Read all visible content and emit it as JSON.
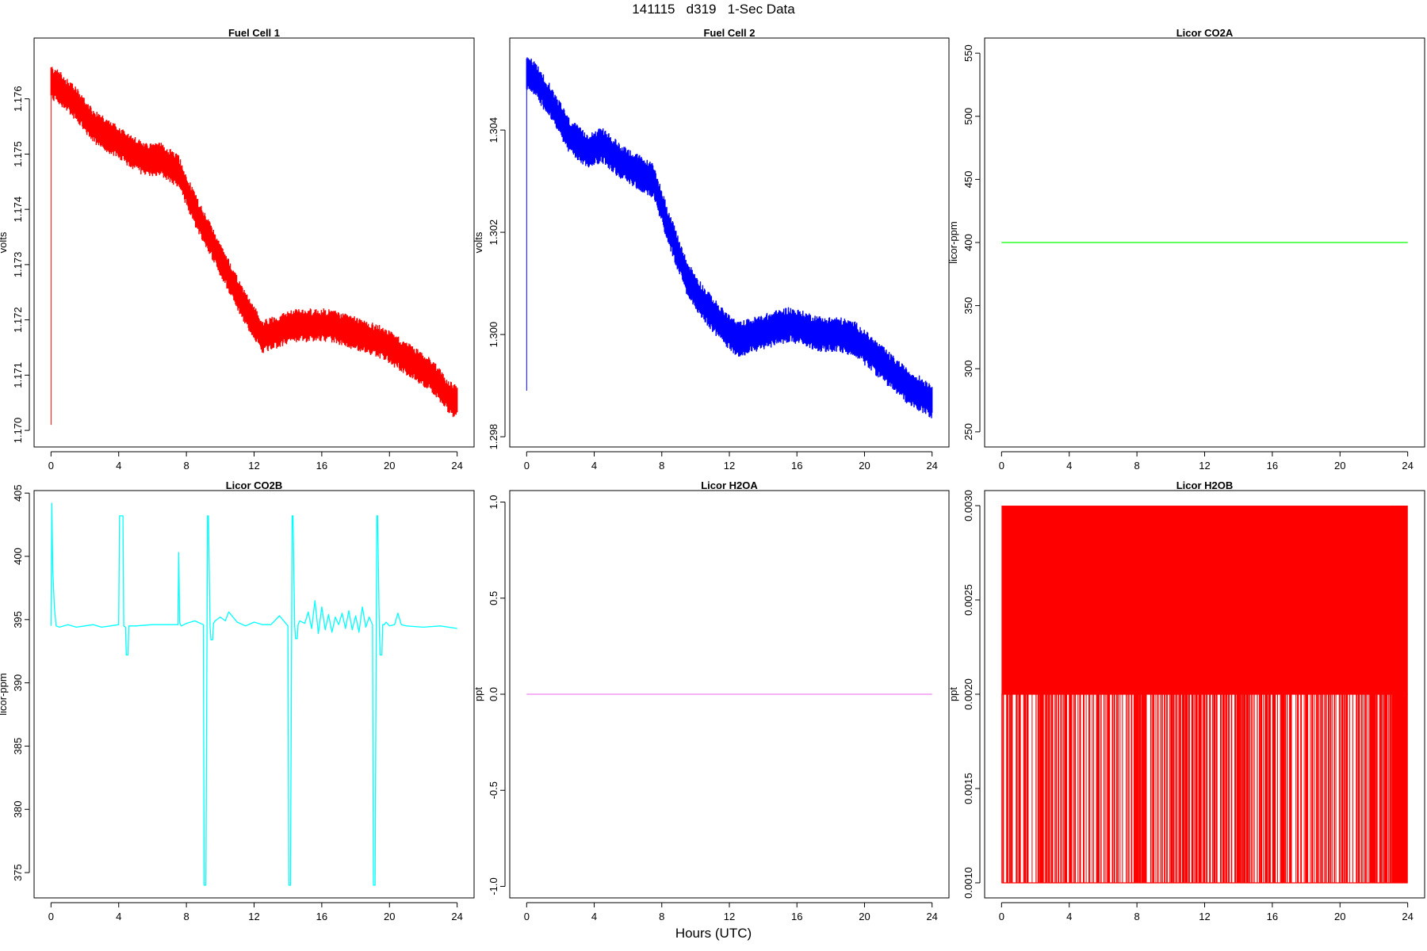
{
  "page": {
    "title": "141115   d319   1-Sec Data",
    "xlabel": "Hours (UTC)"
  },
  "chart_data": [
    {
      "id": "fc1",
      "type": "line",
      "title": "Fuel Cell 1",
      "ylabel": "volts",
      "color": "#ff0000",
      "style": "noisy-band",
      "xlim": [
        -1,
        25
      ],
      "ylim": [
        1.1697,
        1.1771
      ],
      "xticks": [
        0,
        4,
        8,
        12,
        16,
        20,
        24
      ],
      "yticks": [
        1.17,
        1.171,
        1.172,
        1.173,
        1.174,
        1.175,
        1.176
      ],
      "ytick_labels": [
        "1.170",
        "1.171",
        "1.172",
        "1.173",
        "1.174",
        "1.175",
        "1.176"
      ],
      "band": 0.00028,
      "x": [
        0,
        0.5,
        1.5,
        2.5,
        3.5,
        4.5,
        5.5,
        6.5,
        7.5,
        8.5,
        9.5,
        10.5,
        11.5,
        12.5,
        13.5,
        14.5,
        15.5,
        16.5,
        17.5,
        18.5,
        19.5,
        20.5,
        21.5,
        22.5,
        23.5,
        24
      ],
      "y": [
        1.1763,
        1.1762,
        1.1759,
        1.1755,
        1.1753,
        1.1751,
        1.1749,
        1.1749,
        1.1747,
        1.174,
        1.1734,
        1.1728,
        1.1722,
        1.1717,
        1.1718,
        1.1719,
        1.1719,
        1.1719,
        1.1718,
        1.1717,
        1.1716,
        1.1714,
        1.1712,
        1.171,
        1.1706,
        1.1705
      ],
      "spike": {
        "x": 0,
        "y": [
          1.1701,
          1.1765
        ]
      }
    },
    {
      "id": "fc2",
      "type": "line",
      "title": "Fuel Cell 2",
      "ylabel": "volts",
      "color": "#0000ff",
      "style": "noisy-band",
      "xlim": [
        -1,
        25
      ],
      "ylim": [
        1.2978,
        1.3058
      ],
      "xticks": [
        0,
        4,
        8,
        12,
        16,
        20,
        24
      ],
      "yticks": [
        1.298,
        1.3,
        1.302,
        1.304
      ],
      "ytick_labels": [
        "1.298",
        "1.300",
        "1.302",
        "1.304"
      ],
      "band": 0.00032,
      "x": [
        0,
        0.5,
        1.5,
        2.5,
        3.5,
        4.5,
        5.5,
        6.5,
        7.5,
        8.5,
        9.5,
        10.5,
        11.5,
        12.5,
        13.5,
        14.5,
        15.5,
        16.5,
        17.5,
        18.5,
        19.5,
        20.5,
        21.5,
        22.5,
        23.5,
        24
      ],
      "y": [
        1.3051,
        1.305,
        1.3045,
        1.3039,
        1.3036,
        1.3037,
        1.3034,
        1.3032,
        1.303,
        1.302,
        1.3011,
        1.3006,
        1.3002,
        1.2999,
        1.3,
        1.3001,
        1.3002,
        1.3001,
        1.3,
        1.3,
        1.2999,
        1.2996,
        1.2993,
        1.299,
        1.2988,
        1.2987
      ],
      "spike": {
        "x": 0,
        "y": [
          1.2989,
          1.3052
        ]
      }
    },
    {
      "id": "co2a",
      "type": "line",
      "title": "Licor CO2A",
      "ylabel": "licor-ppm",
      "color": "#00ff00",
      "style": "line",
      "xlim": [
        -1,
        25
      ],
      "ylim": [
        238,
        562
      ],
      "xticks": [
        0,
        4,
        8,
        12,
        16,
        20,
        24
      ],
      "yticks": [
        250,
        300,
        350,
        400,
        450,
        500,
        550
      ],
      "ytick_labels": [
        "250",
        "300",
        "350",
        "400",
        "450",
        "500",
        "550"
      ],
      "x": [
        0,
        24
      ],
      "y": [
        400,
        400
      ]
    },
    {
      "id": "co2b",
      "type": "line",
      "title": "Licor CO2B",
      "ylabel": "licor-ppm",
      "color": "#00ffff",
      "style": "line",
      "xlim": [
        -1,
        25
      ],
      "ylim": [
        373,
        405.2
      ],
      "xticks": [
        0,
        4,
        8,
        12,
        16,
        20,
        24
      ],
      "yticks": [
        375,
        380,
        385,
        390,
        395,
        400,
        405
      ],
      "ytick_labels": [
        "375",
        "380",
        "385",
        "390",
        "395",
        "400",
        "405"
      ],
      "x": [
        0,
        0.05,
        0.1,
        0.2,
        0.3,
        0.5,
        1,
        1.5,
        2,
        2.5,
        3,
        3.5,
        4,
        4.05,
        4.15,
        4.25,
        4.3,
        4.4,
        4.45,
        4.55,
        4.6,
        4.7,
        5,
        6,
        7,
        7.5,
        7.55,
        7.6,
        7.65,
        7.7,
        8,
        8.5,
        9,
        9.05,
        9.15,
        9.25,
        9.3,
        9.4,
        9.45,
        9.55,
        9.6,
        9.7,
        10,
        10.3,
        10.5,
        11,
        11.5,
        12,
        12.5,
        13,
        13.5,
        14,
        14.05,
        14.15,
        14.25,
        14.3,
        14.4,
        14.45,
        14.55,
        14.6,
        14.7,
        15,
        15.2,
        15.4,
        15.6,
        15.8,
        16,
        16.2,
        16.4,
        16.6,
        16.8,
        17,
        17.2,
        17.4,
        17.6,
        17.8,
        18,
        18.2,
        18.4,
        18.6,
        18.8,
        19,
        19.05,
        19.15,
        19.25,
        19.3,
        19.4,
        19.45,
        19.55,
        19.6,
        19.7,
        19.8,
        20,
        20.3,
        20.5,
        20.7,
        21,
        22,
        23,
        24
      ],
      "y": [
        394.5,
        404.2,
        399.0,
        396.0,
        394.5,
        394.4,
        394.6,
        394.4,
        394.5,
        394.6,
        394.4,
        394.5,
        394.6,
        403.2,
        403.2,
        403.2,
        394.5,
        394.4,
        392.2,
        392.2,
        394.5,
        394.5,
        394.5,
        394.6,
        394.6,
        394.6,
        400.3,
        394.8,
        394.6,
        394.5,
        394.7,
        394.9,
        394.6,
        374.0,
        374.0,
        403.2,
        403.2,
        394.4,
        393.4,
        393.4,
        394.7,
        394.9,
        395.2,
        394.9,
        395.6,
        394.8,
        394.5,
        394.8,
        394.6,
        394.6,
        395.3,
        394.5,
        374.0,
        374.0,
        403.2,
        403.2,
        394.5,
        393.5,
        393.5,
        394.6,
        394.9,
        394.7,
        395.6,
        394.3,
        396.5,
        393.9,
        396.0,
        394.2,
        395.4,
        394.0,
        395.2,
        394.6,
        395.5,
        394.3,
        395.7,
        394.2,
        395.3,
        394.0,
        396.0,
        394.4,
        395.2,
        394.6,
        374.0,
        374.0,
        403.2,
        403.2,
        394.2,
        392.2,
        392.2,
        394.6,
        394.6,
        394.8,
        394.5,
        394.6,
        395.5,
        394.6,
        394.5,
        394.4,
        394.5,
        394.3
      ]
    },
    {
      "id": "h2oa",
      "type": "line",
      "title": "Licor H2OA",
      "ylabel": "ppt",
      "color": "#ee82ee",
      "style": "line",
      "xlim": [
        -1,
        25
      ],
      "ylim": [
        -1.06,
        1.06
      ],
      "xticks": [
        0,
        4,
        8,
        12,
        16,
        20,
        24
      ],
      "yticks": [
        -1.0,
        -0.5,
        0.0,
        0.5,
        1.0
      ],
      "ytick_labels": [
        "-1.0",
        "-0.5",
        "0.0",
        "0.5",
        "1.0"
      ],
      "x": [
        0,
        24
      ],
      "y": [
        0,
        0
      ]
    },
    {
      "id": "h2ob",
      "type": "line",
      "title": "Licor H2OB",
      "ylabel": "ppt",
      "color": "#ff0000",
      "style": "step-toggle",
      "xlim": [
        -1,
        25
      ],
      "ylim": [
        0.00092,
        0.00308
      ],
      "xticks": [
        0,
        4,
        8,
        12,
        16,
        20,
        24
      ],
      "yticks": [
        0.001,
        0.0015,
        0.002,
        0.0025,
        0.003
      ],
      "ytick_labels": [
        "0.0010",
        "0.0015",
        "0.0020",
        "0.0025",
        "0.0030"
      ],
      "levels": [
        0.001,
        0.002,
        0.003
      ],
      "x": [
        0,
        24
      ]
    }
  ]
}
